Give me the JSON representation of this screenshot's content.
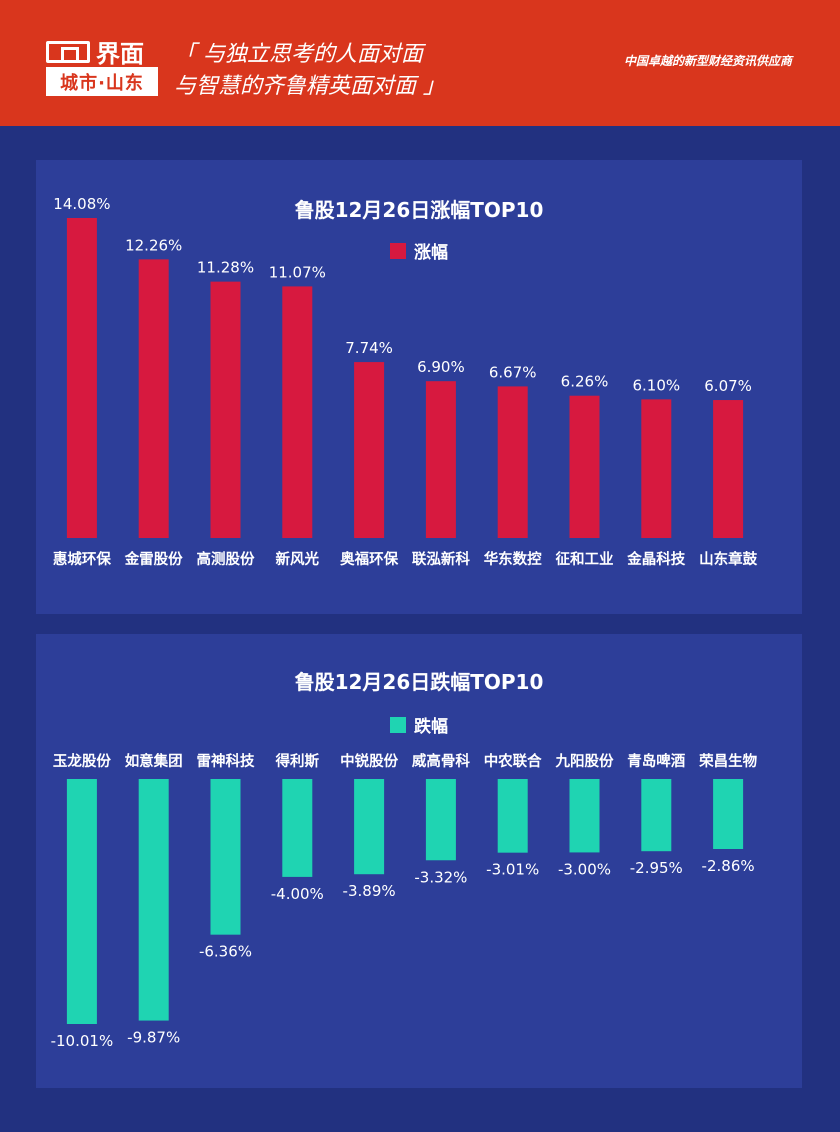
{
  "header": {
    "logo_top": "界面",
    "logo_bottom": "城市·山东",
    "slogan_line1": "「 与独立思考的人面对面",
    "slogan_line2": "与智慧的齐鲁精英面对面 」",
    "tagline": "中国卓越的新型财经资讯供应商"
  },
  "colors": {
    "header_bg": "#d9361d",
    "page_bg": "#223180",
    "panel_bg": "#2d3e99",
    "gain_bar": "#d7193f",
    "loss_bar": "#1fd4b2"
  },
  "chart_data": [
    {
      "type": "bar",
      "title": "鲁股12月26日涨幅TOP10",
      "legend": "涨幅",
      "categories": [
        "惠城环保",
        "金雷股份",
        "高测股份",
        "新风光",
        "奥福环保",
        "联泓新科",
        "华东数控",
        "征和工业",
        "金晶科技",
        "山东章鼓"
      ],
      "values": [
        14.08,
        12.26,
        11.28,
        11.07,
        7.74,
        6.9,
        6.67,
        6.26,
        6.1,
        6.07
      ],
      "labels": [
        "14.08%",
        "12.26%",
        "11.28%",
        "11.07%",
        "7.74%",
        "6.90%",
        "6.67%",
        "6.26%",
        "6.10%",
        "6.07%"
      ],
      "ylim": [
        0,
        14.08
      ]
    },
    {
      "type": "bar",
      "title": "鲁股12月26日跌幅TOP10",
      "legend": "跌幅",
      "categories": [
        "玉龙股份",
        "如意集团",
        "雷神科技",
        "得利斯",
        "中锐股份",
        "威高骨科",
        "中农联合",
        "九阳股份",
        "青岛啤酒",
        "荣昌生物"
      ],
      "values": [
        -10.01,
        -9.87,
        -6.36,
        -4.0,
        -3.89,
        -3.32,
        -3.01,
        -3.0,
        -2.95,
        -2.86
      ],
      "labels": [
        "-10.01%",
        "-9.87%",
        "-6.36%",
        "-4.00%",
        "-3.89%",
        "-3.32%",
        "-3.01%",
        "-3.00%",
        "-2.95%",
        "-2.86%"
      ],
      "ylim": [
        -10.01,
        0
      ]
    }
  ]
}
